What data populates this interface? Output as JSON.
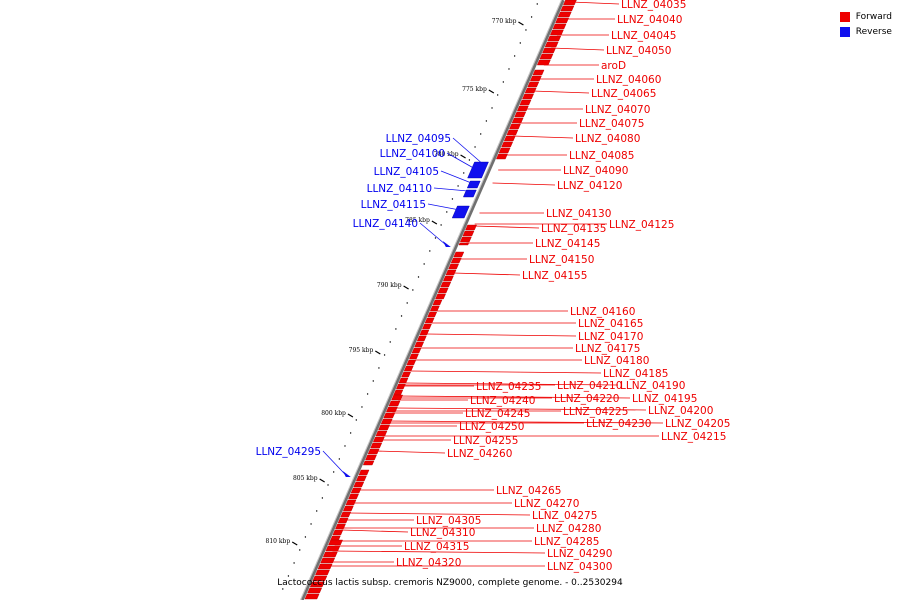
{
  "caption": "Lactococcus lactis subsp. cremoris NZ9000, complete genome. - 0..2530294",
  "legend": {
    "forward": "Forward",
    "reverse": "Reverse",
    "forward_color": "#ee0000",
    "reverse_color": "#1010ee"
  },
  "ticks": [
    "770 kbp",
    "775 kbp",
    "780 kbp",
    "785 kbp",
    "790 kbp",
    "795 kbp",
    "800 kbp",
    "805 kbp",
    "810 kbp"
  ],
  "genes_forward": [
    "LLNZ_04035",
    "LLNZ_04040",
    "LLNZ_04045",
    "LLNZ_04050",
    "aroD",
    "LLNZ_04060",
    "LLNZ_04065",
    "LLNZ_04070",
    "LLNZ_04075",
    "LLNZ_04080",
    "LLNZ_04085",
    "LLNZ_04090",
    "LLNZ_04120",
    "LLNZ_04130",
    "LLNZ_04125",
    "LLNZ_04135",
    "LLNZ_04145",
    "LLNZ_04150",
    "LLNZ_04155",
    "LLNZ_04160",
    "LLNZ_04165",
    "LLNZ_04170",
    "LLNZ_04175",
    "LLNZ_04180",
    "LLNZ_04185",
    "LLNZ_04235",
    "LLNZ_04210",
    "LLNZ_04190",
    "LLNZ_04240",
    "LLNZ_04220",
    "LLNZ_04195",
    "LLNZ_04245",
    "LLNZ_04225",
    "LLNZ_04200",
    "LLNZ_04250",
    "LLNZ_04230",
    "LLNZ_04205",
    "LLNZ_04255",
    "LLNZ_04215",
    "LLNZ_04260",
    "LLNZ_04265",
    "LLNZ_04270",
    "LLNZ_04275",
    "LLNZ_04305",
    "LLNZ_04280",
    "LLNZ_04310",
    "LLNZ_04285",
    "LLNZ_04315",
    "LLNZ_04290",
    "LLNZ_04320",
    "LLNZ_04300"
  ],
  "genes_reverse": [
    "LLNZ_04095",
    "LLNZ_04100",
    "LLNZ_04105",
    "LLNZ_04110",
    "LLNZ_04115",
    "LLNZ_04140",
    "LLNZ_04295"
  ]
}
